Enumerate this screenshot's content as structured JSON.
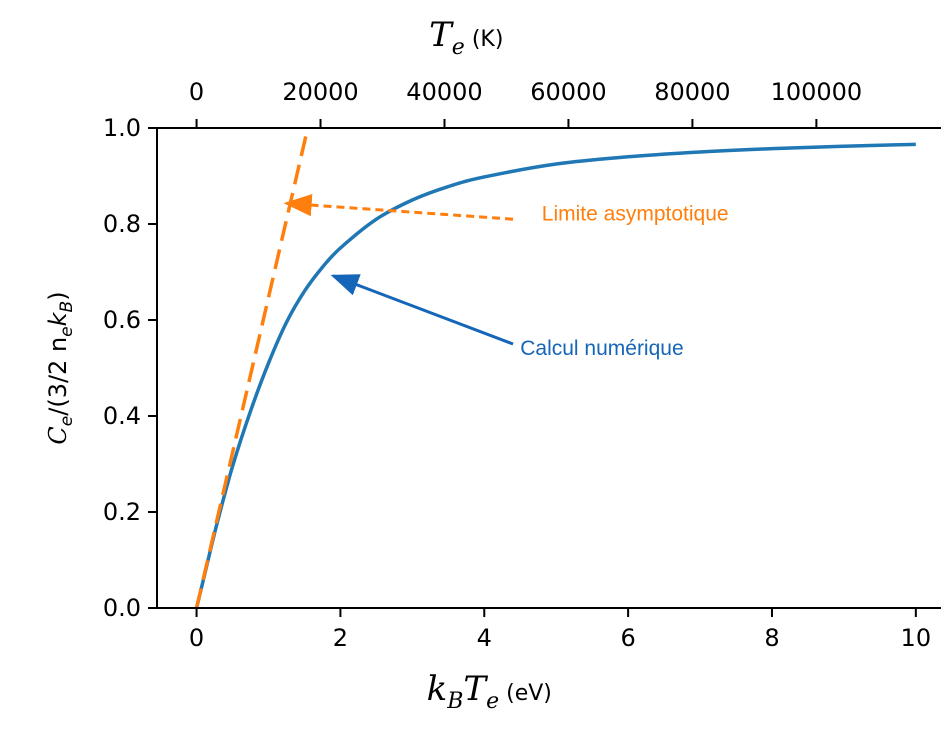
{
  "chart_data": {
    "type": "line",
    "colors": {
      "numeric": "#1f77b4",
      "asymptote": "#ff7f0e",
      "numeric_arrow": "#1565b8"
    },
    "xlabel": {
      "var": "k",
      "sub": "B",
      "var2": "T",
      "sub2": "e",
      "unit": " (eV)"
    },
    "x2label": {
      "var": "T",
      "sub": "e",
      "unit": " (K)"
    },
    "ylabel": {
      "pre": "C",
      "sub1": "e",
      "mid": "/(3/2 n",
      "sub2": "e",
      "mid2": "k",
      "sub3": "B",
      "post": ")"
    },
    "xlim": [
      -0.55,
      10.35
    ],
    "ylim": [
      0,
      1.0
    ],
    "x_ticks": [
      0,
      2,
      4,
      6,
      8,
      10
    ],
    "x_tick_labels": [
      "0",
      "2",
      "4",
      "6",
      "8",
      "10"
    ],
    "y_ticks": [
      0.0,
      0.2,
      0.4,
      0.6,
      0.8,
      1.0
    ],
    "y_tick_labels": [
      "0.0",
      "0.2",
      "0.4",
      "0.6",
      "0.8",
      "1.0"
    ],
    "top_ticks_K": [
      0,
      20000,
      40000,
      60000,
      80000,
      100000
    ],
    "top_tick_labels": [
      "0",
      "20000",
      "40000",
      "60000",
      "80000",
      "100000"
    ],
    "series": [
      {
        "name": "Calcul numérique",
        "style": "solid",
        "x": [
          0,
          0.1,
          0.2,
          0.3,
          0.5,
          0.75,
          1.0,
          1.25,
          1.5,
          1.75,
          2.0,
          2.5,
          3.0,
          3.5,
          4.0,
          5.0,
          6.0,
          7.0,
          8.0,
          9.0,
          10.0
        ],
        "y": [
          0.0,
          0.062,
          0.125,
          0.185,
          0.295,
          0.41,
          0.51,
          0.595,
          0.66,
          0.71,
          0.75,
          0.81,
          0.85,
          0.878,
          0.898,
          0.925,
          0.94,
          0.95,
          0.957,
          0.962,
          0.966
        ]
      },
      {
        "name": "Limite asymptotique",
        "style": "dashed",
        "x": [
          0,
          1.53
        ],
        "y": [
          0.0,
          0.99
        ]
      }
    ],
    "annotations": [
      {
        "text": "Limite asymptotique",
        "series": "Limite asymptotique",
        "text_xy": [
          4.8,
          0.807
        ],
        "arrow_from": [
          4.4,
          0.81
        ],
        "arrow_to": [
          1.25,
          0.843
        ],
        "arrow_style": "dashed"
      },
      {
        "text": "Calcul numérique",
        "series": "Calcul numérique",
        "text_xy": [
          4.5,
          0.527
        ],
        "arrow_from": [
          4.4,
          0.55
        ],
        "arrow_to": [
          1.9,
          0.692
        ],
        "arrow_style": "solid"
      }
    ]
  }
}
